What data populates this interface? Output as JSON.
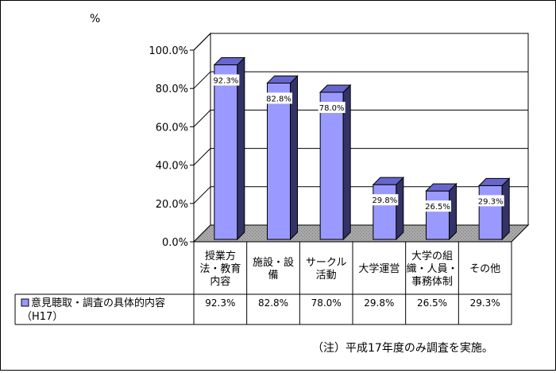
{
  "chart_data": {
    "type": "bar",
    "unit_label": "%",
    "ylim": [
      0,
      100
    ],
    "yticks": [
      "100.0%",
      "80.0%",
      "60.0%",
      "40.0%",
      "20.0%",
      "0.0%"
    ],
    "ytick_values": [
      100,
      80,
      60,
      40,
      20,
      0
    ],
    "categories": [
      [
        "授業方",
        "法・教育",
        "内容"
      ],
      [
        "施設・設",
        "備"
      ],
      [
        "サークル",
        "活動"
      ],
      [
        "大学運営"
      ],
      [
        "大学の組",
        "織・人員・",
        "事務体制"
      ],
      [
        "その他"
      ]
    ],
    "series": [
      {
        "name": "意見聴取・調査の具体的内容",
        "name_suffix": "（H17）",
        "values": [
          92.3,
          82.8,
          78.0,
          29.8,
          26.5,
          29.3
        ],
        "labels": [
          "92.3%",
          "82.8%",
          "78.0%",
          "29.8%",
          "26.5%",
          "29.3%"
        ],
        "color": "#9999ff"
      }
    ],
    "grid": true,
    "legend": "data-table"
  },
  "footnote": "（注）平成17年度のみ調査を実施。"
}
